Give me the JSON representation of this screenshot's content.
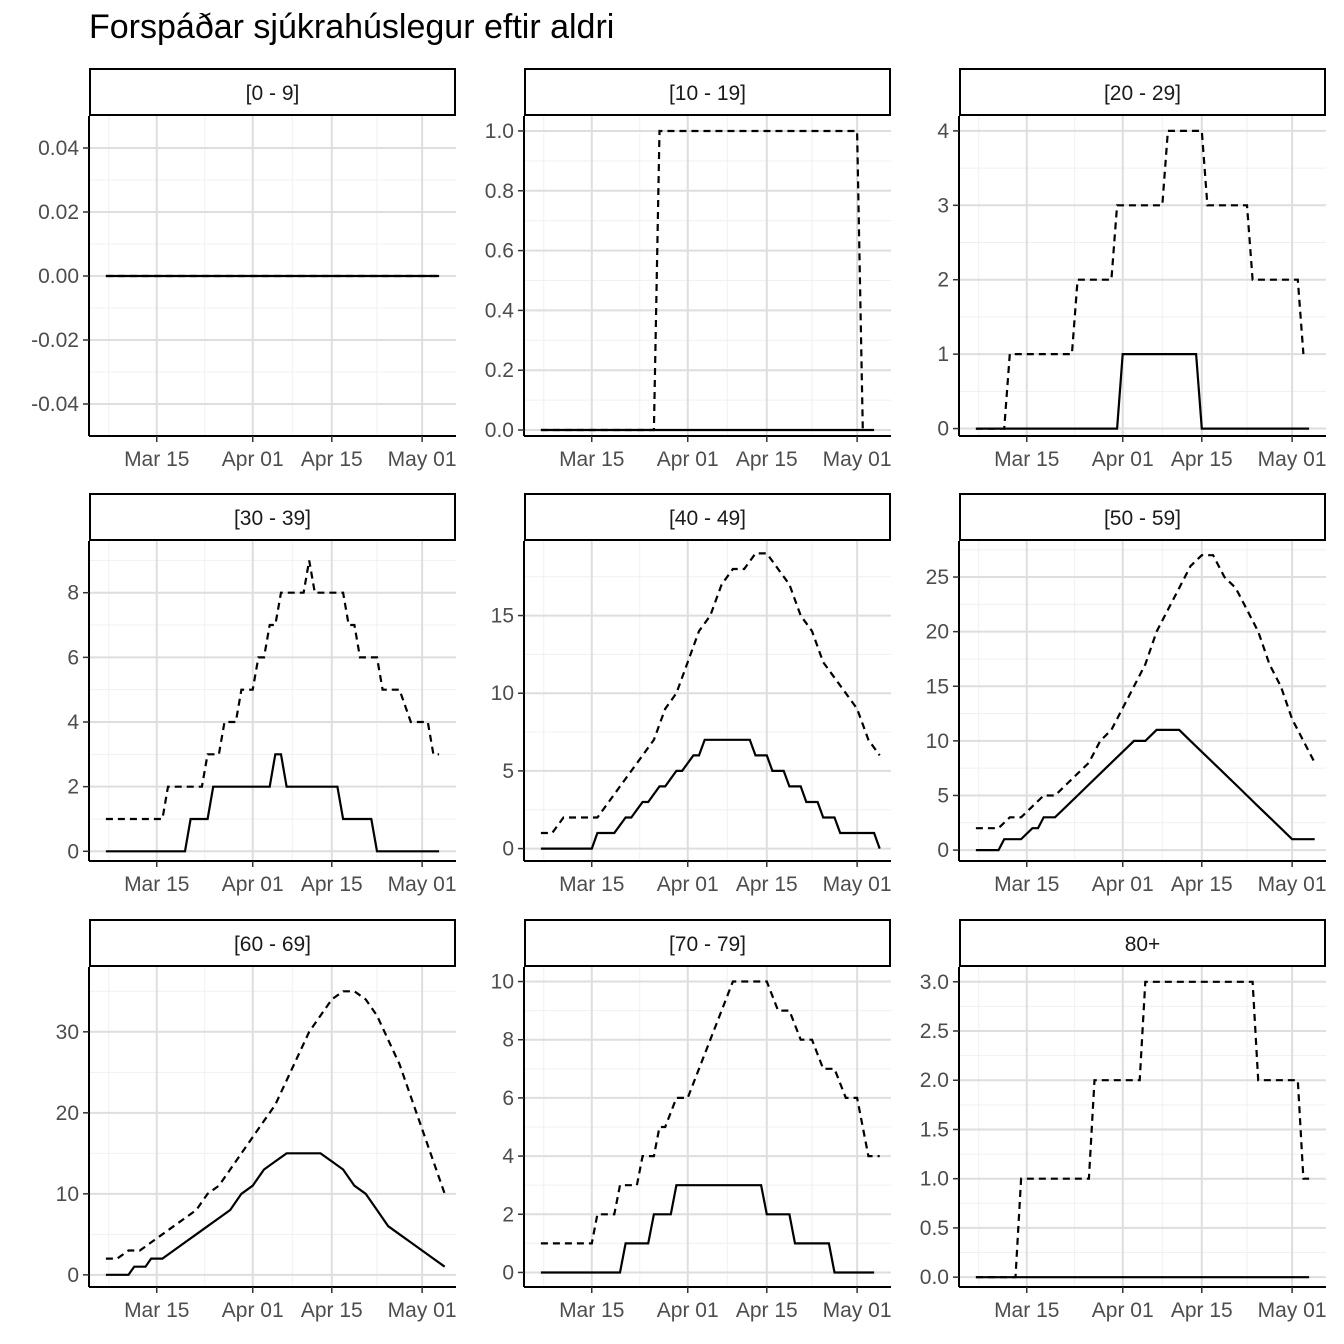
{
  "chart_data": {
    "type": "line",
    "title": "Forspáðar sjúkrahúslegur eftir aldri",
    "xlabel": "",
    "ylabel": "",
    "x_ticks": [
      "Mar 15",
      "Apr 01",
      "Apr 15",
      "May 01"
    ],
    "x_tick_days": [
      15,
      32,
      46,
      62
    ],
    "xlim_days": [
      3,
      68
    ],
    "grid": true,
    "series_styles": [
      "dashed",
      "solid"
    ],
    "panels": [
      {
        "label": "[0 - 9]",
        "ylim": [
          -0.05,
          0.05
        ],
        "yticks": [
          -0.04,
          -0.02,
          0.0,
          0.02,
          0.04
        ],
        "ytick_labels": [
          "-0.04",
          "-0.02",
          "0.00",
          "0.02",
          "0.04"
        ],
        "series": [
          {
            "style": "dashed",
            "x": [
              6,
              65
            ],
            "y": [
              0,
              0
            ]
          },
          {
            "style": "solid",
            "x": [
              6,
              65
            ],
            "y": [
              0,
              0
            ]
          }
        ]
      },
      {
        "label": "[10 - 19]",
        "ylim": [
          -0.02,
          1.05
        ],
        "yticks": [
          0.0,
          0.2,
          0.4,
          0.6,
          0.8,
          1.0
        ],
        "ytick_labels": [
          "0.0",
          "0.2",
          "0.4",
          "0.6",
          "0.8",
          "1.0"
        ],
        "series": [
          {
            "style": "dashed",
            "x": [
              6,
              26,
              27,
              62,
              63
            ],
            "y": [
              0,
              0,
              1,
              1,
              0
            ]
          },
          {
            "style": "solid",
            "x": [
              6,
              65
            ],
            "y": [
              0,
              0
            ]
          }
        ]
      },
      {
        "label": "[20 - 29]",
        "ylim": [
          -0.1,
          4.2
        ],
        "yticks": [
          0,
          1,
          2,
          3,
          4
        ],
        "ytick_labels": [
          "0",
          "1",
          "2",
          "3",
          "4"
        ],
        "series": [
          {
            "style": "dashed",
            "x": [
              6,
              11,
              12,
              23,
              24,
              30,
              31,
              39,
              40,
              46,
              47,
              54,
              55,
              60,
              61,
              62,
              63,
              64
            ],
            "y": [
              0,
              0,
              1,
              1,
              2,
              2,
              3,
              3,
              4,
              4,
              3,
              3,
              2,
              2,
              2,
              2,
              2,
              1
            ]
          },
          {
            "style": "solid",
            "x": [
              6,
              31,
              32,
              45,
              46,
              65
            ],
            "y": [
              0,
              0,
              1,
              1,
              0,
              0
            ]
          }
        ]
      },
      {
        "label": "[30 - 39]",
        "ylim": [
          -0.3,
          9.6
        ],
        "yticks": [
          0,
          2,
          4,
          6,
          8
        ],
        "ytick_labels": [
          "0",
          "2",
          "4",
          "6",
          "8"
        ],
        "series": [
          {
            "style": "dashed",
            "x": [
              6,
              16,
              17,
              20,
              21,
              23,
              24,
              26,
              27,
              29,
              30,
              32,
              33,
              34,
              35,
              36,
              37,
              38,
              39,
              41,
              42,
              43,
              44,
              47,
              48,
              49,
              50,
              51,
              52,
              54,
              55,
              57,
              58,
              60,
              61,
              62,
              63,
              64,
              65
            ],
            "y": [
              1,
              1,
              2,
              2,
              2,
              2,
              3,
              3,
              4,
              4,
              5,
              5,
              6,
              6,
              7,
              7,
              8,
              8,
              8,
              8,
              9,
              8,
              8,
              8,
              8,
              7,
              7,
              6,
              6,
              6,
              5,
              5,
              5,
              4,
              4,
              4,
              4,
              3,
              3
            ]
          },
          {
            "style": "solid",
            "x": [
              6,
              20,
              21,
              24,
              25,
              35,
              36,
              37,
              38,
              47,
              48,
              53,
              54,
              65
            ],
            "y": [
              0,
              0,
              1,
              1,
              2,
              2,
              3,
              3,
              2,
              2,
              1,
              1,
              0,
              0
            ]
          }
        ]
      },
      {
        "label": "[40 - 49]",
        "ylim": [
          -0.8,
          19.8
        ],
        "yticks": [
          0,
          5,
          10,
          15
        ],
        "ytick_labels": [
          "0",
          "5",
          "10",
          "15"
        ],
        "series": [
          {
            "style": "dashed",
            "x": [
              6,
              8,
              10,
              16,
              18,
              20,
              22,
              24,
              26,
              28,
              30,
              32,
              34,
              36,
              38,
              40,
              42,
              44,
              46,
              48,
              50,
              52,
              54,
              56,
              58,
              60,
              62,
              64,
              66
            ],
            "y": [
              1,
              1,
              2,
              2,
              3,
              4,
              5,
              6,
              7,
              9,
              10,
              12,
              14,
              15,
              17,
              18,
              18,
              19,
              19,
              18,
              17,
              15,
              14,
              12,
              11,
              10,
              9,
              7,
              6
            ]
          },
          {
            "style": "solid",
            "x": [
              6,
              15,
              16,
              18,
              19,
              21,
              22,
              24,
              25,
              27,
              28,
              30,
              31,
              33,
              34,
              35,
              36,
              43,
              44,
              46,
              47,
              49,
              50,
              52,
              53,
              55,
              56,
              58,
              59,
              65,
              66
            ],
            "y": [
              0,
              0,
              1,
              1,
              1,
              2,
              2,
              3,
              3,
              4,
              4,
              5,
              5,
              6,
              6,
              7,
              7,
              7,
              6,
              6,
              5,
              5,
              4,
              4,
              3,
              3,
              2,
              2,
              1,
              1,
              0
            ]
          }
        ]
      },
      {
        "label": "[50 - 59]",
        "ylim": [
          -1,
          28.3
        ],
        "yticks": [
          0,
          5,
          10,
          15,
          20,
          25
        ],
        "ytick_labels": [
          "0",
          "5",
          "10",
          "15",
          "20",
          "25"
        ],
        "series": [
          {
            "style": "dashed",
            "x": [
              6,
              8,
              10,
              12,
              14,
              16,
              18,
              20,
              22,
              24,
              26,
              28,
              30,
              32,
              34,
              36,
              38,
              40,
              42,
              44,
              46,
              48,
              50,
              52,
              54,
              56,
              58,
              60,
              62,
              64,
              66
            ],
            "y": [
              2,
              2,
              2,
              3,
              3,
              4,
              5,
              5,
              6,
              7,
              8,
              10,
              11,
              13,
              15,
              17,
              20,
              22,
              24,
              26,
              27,
              27,
              25,
              24,
              22,
              20,
              17,
              15,
              12,
              10,
              8
            ]
          },
          {
            "style": "solid",
            "x": [
              6,
              10,
              11,
              13,
              14,
              16,
              17,
              18,
              20,
              22,
              24,
              26,
              28,
              30,
              32,
              34,
              36,
              38,
              40,
              42,
              44,
              46,
              48,
              50,
              52,
              54,
              56,
              58,
              60,
              62,
              64,
              66
            ],
            "y": [
              0,
              0,
              1,
              1,
              1,
              2,
              2,
              3,
              3,
              4,
              5,
              6,
              7,
              8,
              9,
              10,
              10,
              11,
              11,
              11,
              10,
              9,
              8,
              7,
              6,
              5,
              4,
              3,
              2,
              1,
              1,
              1
            ]
          }
        ]
      },
      {
        "label": "[60 - 69]",
        "ylim": [
          -1.5,
          38
        ],
        "yticks": [
          0,
          10,
          20,
          30
        ],
        "ytick_labels": [
          "0",
          "10",
          "20",
          "30"
        ],
        "series": [
          {
            "style": "dashed",
            "x": [
              6,
              8,
              10,
              12,
              14,
              16,
              18,
              20,
              22,
              24,
              26,
              28,
              30,
              32,
              34,
              36,
              38,
              40,
              42,
              44,
              46,
              48,
              50,
              52,
              54,
              56,
              58,
              60,
              62,
              64,
              66
            ],
            "y": [
              2,
              2,
              3,
              3,
              4,
              5,
              6,
              7,
              8,
              10,
              11,
              13,
              15,
              17,
              19,
              21,
              24,
              27,
              30,
              32,
              34,
              35,
              35,
              34,
              32,
              29,
              26,
              22,
              18,
              14,
              10
            ]
          },
          {
            "style": "solid",
            "x": [
              6,
              10,
              11,
              13,
              14,
              16,
              18,
              20,
              22,
              24,
              26,
              28,
              30,
              32,
              34,
              36,
              38,
              40,
              42,
              44,
              46,
              48,
              50,
              52,
              54,
              56,
              58,
              60,
              62,
              64,
              66
            ],
            "y": [
              0,
              0,
              1,
              1,
              2,
              2,
              3,
              4,
              5,
              6,
              7,
              8,
              10,
              11,
              13,
              14,
              15,
              15,
              15,
              15,
              14,
              13,
              11,
              10,
              8,
              6,
              5,
              4,
              3,
              2,
              1
            ]
          }
        ]
      },
      {
        "label": "[70 - 79]",
        "ylim": [
          -0.5,
          10.5
        ],
        "yticks": [
          0,
          2,
          4,
          6,
          8,
          10
        ],
        "ytick_labels": [
          "0",
          "2",
          "4",
          "6",
          "8",
          "10"
        ],
        "series": [
          {
            "style": "dashed",
            "x": [
              6,
              15,
              16,
              19,
              20,
              23,
              24,
              26,
              27,
              28,
              30,
              32,
              34,
              36,
              38,
              40,
              42,
              44,
              46,
              48,
              50,
              52,
              54,
              56,
              58,
              60,
              62,
              64,
              66
            ],
            "y": [
              1,
              1,
              2,
              2,
              3,
              3,
              4,
              4,
              5,
              5,
              6,
              6,
              7,
              8,
              9,
              10,
              10,
              10,
              10,
              9,
              9,
              8,
              8,
              7,
              7,
              6,
              6,
              4,
              4
            ]
          },
          {
            "style": "solid",
            "x": [
              6,
              20,
              21,
              25,
              26,
              29,
              30,
              45,
              46,
              50,
              51,
              57,
              58,
              65
            ],
            "y": [
              0,
              0,
              1,
              1,
              2,
              2,
              3,
              3,
              2,
              2,
              1,
              1,
              0,
              0
            ]
          }
        ]
      },
      {
        "label": "80+",
        "ylim": [
          -0.1,
          3.15
        ],
        "yticks": [
          0.0,
          0.5,
          1.0,
          1.5,
          2.0,
          2.5,
          3.0
        ],
        "ytick_labels": [
          "0.0",
          "0.5",
          "1.0",
          "1.5",
          "2.0",
          "2.5",
          "3.0"
        ],
        "series": [
          {
            "style": "dashed",
            "x": [
              6,
              13,
              14,
              26,
              27,
              35,
              36,
              55,
              56,
              63,
              64,
              65
            ],
            "y": [
              0,
              0,
              1,
              1,
              2,
              2,
              3,
              3,
              2,
              2,
              1,
              1
            ]
          },
          {
            "style": "solid",
            "x": [
              6,
              65
            ],
            "y": [
              0,
              0
            ]
          }
        ]
      }
    ]
  }
}
